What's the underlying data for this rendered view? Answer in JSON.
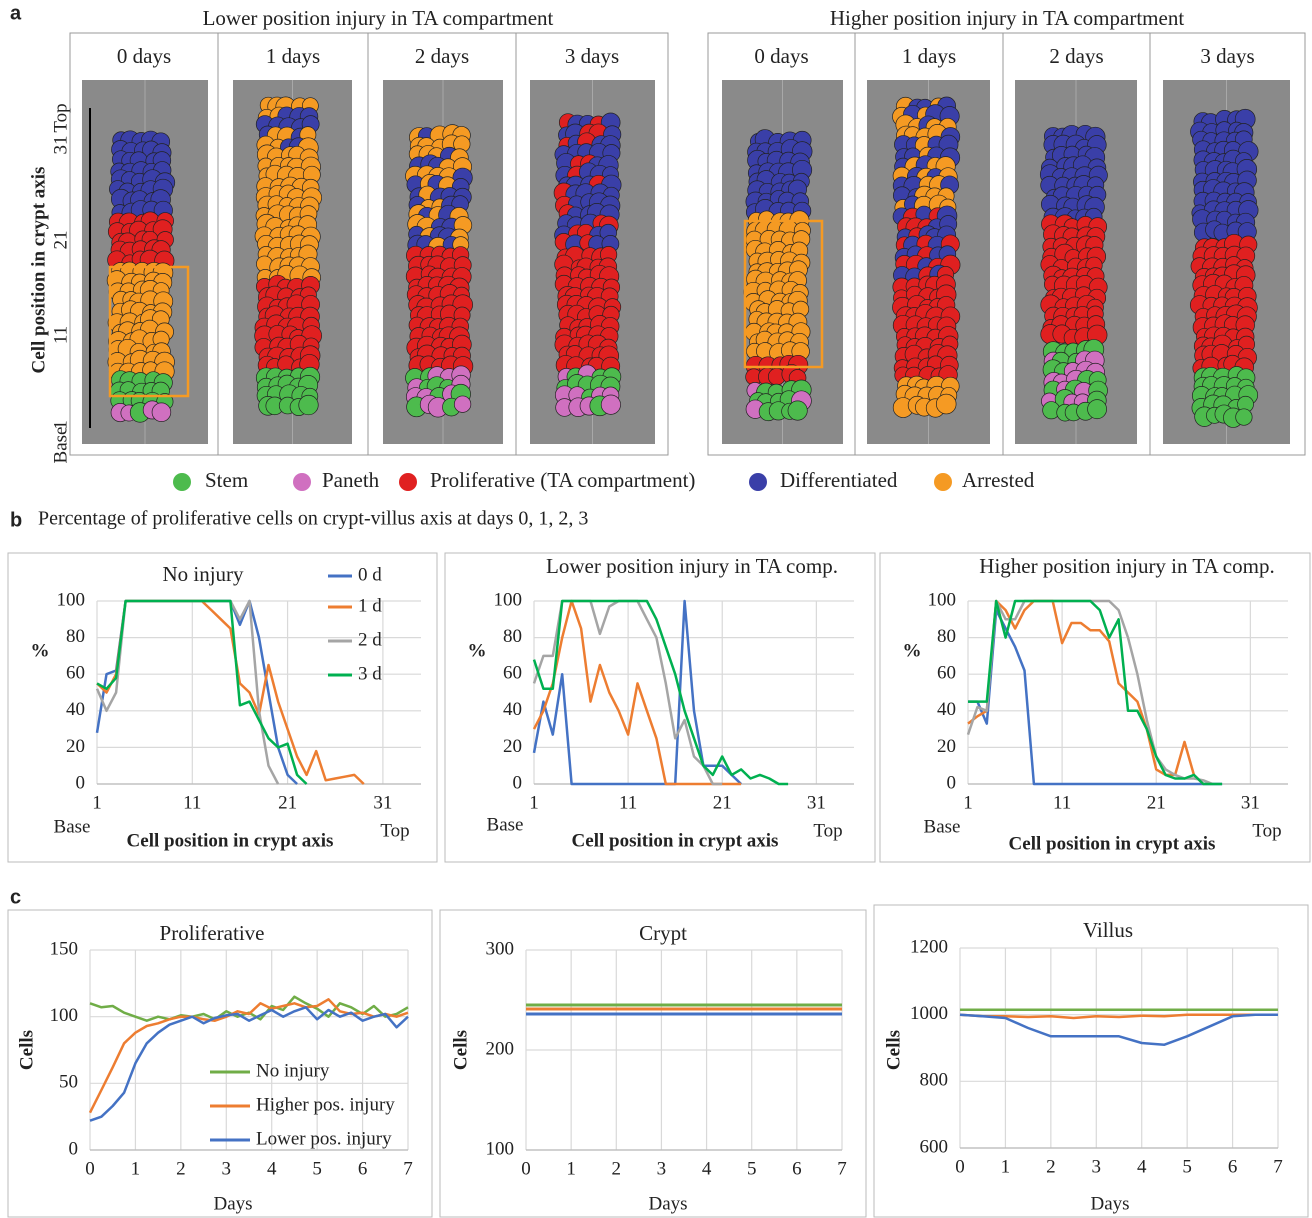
{
  "panel_labels": [
    "a",
    "b",
    "c"
  ],
  "panel_a": {
    "groups": [
      {
        "title": "Lower position injury in TA compartment",
        "days": [
          "0 days",
          "1 days",
          "2 days",
          "3 days"
        ]
      },
      {
        "title": "Higher position injury in TA compartment",
        "days": [
          "0 days",
          "1 days",
          "2 days",
          "3 days"
        ]
      }
    ],
    "axis_label": "Cell position in crypt axis",
    "axis_ticks": [
      "Top",
      "31",
      "21",
      "11",
      "1",
      "Base"
    ],
    "legend": [
      {
        "label": "Stem",
        "color": "#4dbb4d"
      },
      {
        "label": "Paneth",
        "color": "#d070c0"
      },
      {
        "label": "Proliferative (TA compartment)",
        "color": "#e02020"
      },
      {
        "label": "Differentiated",
        "color": "#3a3fa8"
      },
      {
        "label": "Arrested",
        "color": "#f59a23"
      }
    ]
  },
  "panel_b_title": "Percentage of proliferative cells on crypt-villus axis at days 0, 1, 2, 3",
  "chart_data": [
    {
      "type": "line",
      "title": "No injury",
      "xlabel": "Cell position in crypt axis",
      "ylabel": "%",
      "x_end_labels": [
        "Base",
        "Top"
      ],
      "x": [
        1,
        2,
        3,
        4,
        5,
        6,
        7,
        8,
        9,
        10,
        11,
        12,
        13,
        14,
        15,
        16,
        17,
        18,
        19,
        20,
        21,
        22,
        23,
        24,
        25,
        26,
        27,
        28,
        29
      ],
      "xlim": [
        1,
        35
      ],
      "xticks": [
        1,
        11,
        21,
        31
      ],
      "ylim": [
        0,
        100
      ],
      "yticks": [
        0,
        20,
        40,
        60,
        80,
        100
      ],
      "grid": true,
      "series": [
        {
          "name": "0 d",
          "color": "#4472c4",
          "values": [
            28,
            60,
            62,
            100,
            100,
            100,
            100,
            100,
            100,
            100,
            100,
            100,
            100,
            100,
            100,
            87,
            100,
            80,
            50,
            20,
            5,
            0,
            null,
            null,
            null,
            null,
            null,
            null,
            null
          ]
        },
        {
          "name": "1 d",
          "color": "#ed7d31",
          "values": [
            55,
            50,
            60,
            100,
            100,
            100,
            100,
            100,
            100,
            100,
            100,
            100,
            95,
            90,
            85,
            55,
            50,
            38,
            65,
            45,
            30,
            15,
            5,
            18,
            2,
            3,
            4,
            5,
            0
          ]
        },
        {
          "name": "2 d",
          "color": "#a5a5a5",
          "values": [
            52,
            40,
            50,
            100,
            100,
            100,
            100,
            100,
            100,
            100,
            100,
            100,
            100,
            100,
            100,
            90,
            100,
            40,
            10,
            0,
            null,
            null,
            null,
            null,
            null,
            null,
            null,
            null,
            null
          ]
        },
        {
          "name": "3 d",
          "color": "#00b050",
          "values": [
            55,
            52,
            58,
            100,
            100,
            100,
            100,
            100,
            100,
            100,
            100,
            100,
            100,
            100,
            100,
            43,
            45,
            35,
            25,
            20,
            22,
            5,
            0,
            null,
            null,
            null,
            null,
            null,
            null
          ]
        }
      ]
    },
    {
      "type": "line",
      "title": "Lower position injury in TA comp.",
      "xlabel": "Cell position in crypt axis",
      "ylabel": "%",
      "x_end_labels": [
        "Base",
        "Top"
      ],
      "x": [
        1,
        2,
        3,
        4,
        5,
        6,
        7,
        8,
        9,
        10,
        11,
        12,
        13,
        14,
        15,
        16,
        17,
        18,
        19,
        20,
        21,
        22,
        23,
        24,
        25,
        26,
        27,
        28,
        29
      ],
      "xlim": [
        1,
        35
      ],
      "xticks": [
        1,
        11,
        21,
        31
      ],
      "ylim": [
        0,
        100
      ],
      "yticks": [
        0,
        20,
        40,
        60,
        80,
        100
      ],
      "grid": true,
      "series": [
        {
          "color": "#4472c4",
          "values": [
            17,
            45,
            27,
            60,
            0,
            0,
            0,
            0,
            0,
            0,
            0,
            0,
            0,
            0,
            0,
            0,
            100,
            40,
            10,
            10,
            10,
            5,
            0,
            null,
            null,
            null,
            null,
            null,
            null
          ]
        },
        {
          "color": "#ed7d31",
          "values": [
            30,
            40,
            55,
            80,
            100,
            85,
            45,
            65,
            50,
            40,
            27,
            55,
            40,
            25,
            0,
            0,
            0,
            0,
            0,
            0,
            0,
            0,
            0,
            null,
            null,
            null,
            null,
            null,
            null
          ]
        },
        {
          "color": "#a5a5a5",
          "values": [
            55,
            70,
            70,
            100,
            100,
            100,
            100,
            82,
            97,
            100,
            100,
            100,
            90,
            80,
            55,
            25,
            35,
            15,
            10,
            0,
            0,
            null,
            null,
            null,
            null,
            null,
            null,
            null,
            null
          ]
        },
        {
          "color": "#00b050",
          "values": [
            68,
            52,
            52,
            100,
            100,
            100,
            100,
            100,
            100,
            100,
            100,
            100,
            100,
            90,
            75,
            60,
            40,
            25,
            10,
            5,
            15,
            5,
            8,
            3,
            5,
            3,
            0,
            0,
            null
          ]
        }
      ]
    },
    {
      "type": "line",
      "title": "Higher position injury in TA comp.",
      "xlabel": "Cell position in crypt axis",
      "ylabel": "%",
      "x_end_labels": [
        "Base",
        "Top"
      ],
      "x": [
        1,
        2,
        3,
        4,
        5,
        6,
        7,
        8,
        9,
        10,
        11,
        12,
        13,
        14,
        15,
        16,
        17,
        18,
        19,
        20,
        21,
        22,
        23,
        24,
        25,
        26,
        27,
        28,
        29
      ],
      "xlim": [
        1,
        35
      ],
      "xticks": [
        1,
        11,
        21,
        31
      ],
      "ylim": [
        0,
        100
      ],
      "yticks": [
        0,
        20,
        40,
        60,
        80,
        100
      ],
      "grid": true,
      "series": [
        {
          "color": "#4472c4",
          "values": [
            45,
            45,
            33,
            95,
            85,
            75,
            62,
            0,
            0,
            0,
            0,
            0,
            0,
            0,
            0,
            0,
            0,
            0,
            0,
            0,
            0,
            0,
            0,
            0,
            0,
            0,
            0,
            0,
            null
          ]
        },
        {
          "color": "#ed7d31",
          "values": [
            33,
            37,
            40,
            100,
            95,
            85,
            95,
            100,
            100,
            100,
            77,
            88,
            88,
            84,
            84,
            78,
            55,
            50,
            45,
            30,
            8,
            5,
            5,
            23,
            5,
            0,
            null,
            null,
            null
          ]
        },
        {
          "color": "#a5a5a5",
          "values": [
            27,
            42,
            40,
            100,
            90,
            90,
            100,
            100,
            100,
            100,
            100,
            100,
            100,
            100,
            100,
            100,
            95,
            80,
            60,
            35,
            15,
            8,
            5,
            3,
            3,
            2,
            0,
            null,
            null
          ]
        },
        {
          "color": "#00b050",
          "values": [
            45,
            45,
            45,
            100,
            80,
            100,
            100,
            100,
            100,
            100,
            100,
            100,
            100,
            100,
            95,
            80,
            90,
            40,
            40,
            30,
            15,
            5,
            3,
            3,
            5,
            0,
            0,
            0,
            null
          ]
        }
      ]
    },
    {
      "type": "line",
      "title": "Proliferative",
      "xlabel": "Days",
      "ylabel": "Cells",
      "x": [
        0,
        0.25,
        0.5,
        0.75,
        1,
        1.25,
        1.5,
        1.75,
        2,
        2.25,
        2.5,
        2.75,
        3,
        3.25,
        3.5,
        3.75,
        4,
        4.25,
        4.5,
        4.75,
        5,
        5.25,
        5.5,
        5.75,
        6,
        6.25,
        6.5,
        6.75,
        7
      ],
      "xlim": [
        0,
        7
      ],
      "xticks": [
        0,
        1,
        2,
        3,
        4,
        5,
        6,
        7
      ],
      "ylim": [
        0,
        150
      ],
      "yticks": [
        0,
        50,
        100,
        150
      ],
      "grid": true,
      "series": [
        {
          "name": "No injury",
          "color": "#70ad47",
          "values": [
            110,
            107,
            108,
            103,
            100,
            97,
            100,
            98,
            101,
            100,
            102,
            98,
            104,
            100,
            103,
            98,
            108,
            105,
            115,
            110,
            106,
            100,
            110,
            107,
            102,
            108,
            100,
            102,
            107
          ]
        },
        {
          "name": "Higher pos. injury",
          "color": "#ed7d31",
          "values": [
            28,
            45,
            62,
            80,
            88,
            93,
            95,
            98,
            100,
            100,
            98,
            97,
            100,
            104,
            102,
            110,
            106,
            108,
            110,
            107,
            108,
            113,
            104,
            102,
            103,
            100,
            102,
            100,
            103
          ]
        },
        {
          "name": "Lower pos. injury",
          "color": "#4472c4",
          "values": [
            22,
            25,
            33,
            43,
            65,
            80,
            88,
            94,
            97,
            100,
            95,
            99,
            101,
            102,
            97,
            101,
            105,
            100,
            104,
            107,
            98,
            105,
            100,
            103,
            97,
            100,
            102,
            92,
            100
          ]
        }
      ]
    },
    {
      "type": "line",
      "title": "Crypt",
      "xlabel": "Days",
      "ylabel": "Cells",
      "x": [
        0,
        7
      ],
      "xlim": [
        0,
        7
      ],
      "xticks": [
        0,
        1,
        2,
        3,
        4,
        5,
        6,
        7
      ],
      "ylim": [
        100,
        300
      ],
      "yticks": [
        100,
        200,
        300
      ],
      "grid": true,
      "series": [
        {
          "color": "#70ad47",
          "values": [
            245,
            245
          ]
        },
        {
          "color": "#ed7d31",
          "values": [
            241,
            241
          ]
        },
        {
          "color": "#4472c4",
          "values": [
            236,
            236
          ]
        }
      ]
    },
    {
      "type": "line",
      "title": "Villus",
      "xlabel": "Days",
      "ylabel": "Cells",
      "x": [
        0,
        0.5,
        1,
        1.5,
        2,
        2.5,
        3,
        3.5,
        4,
        4.5,
        5,
        5.5,
        6,
        6.5,
        7
      ],
      "xlim": [
        0,
        7
      ],
      "xticks": [
        0,
        1,
        2,
        3,
        4,
        5,
        6,
        7
      ],
      "ylim": [
        600,
        1200
      ],
      "yticks": [
        600,
        800,
        1000,
        1200
      ],
      "grid": true,
      "series": [
        {
          "color": "#70ad47",
          "values": [
            1015,
            1015,
            1015,
            1015,
            1015,
            1015,
            1015,
            1015,
            1015,
            1015,
            1015,
            1015,
            1015,
            1015,
            1015
          ]
        },
        {
          "color": "#ed7d31",
          "values": [
            1000,
            995,
            995,
            993,
            995,
            990,
            995,
            993,
            997,
            995,
            1000,
            1000,
            1000,
            1000,
            1000
          ]
        },
        {
          "color": "#4472c4",
          "values": [
            1000,
            995,
            990,
            960,
            935,
            935,
            935,
            935,
            915,
            910,
            935,
            965,
            995,
            1000,
            1000
          ]
        }
      ]
    }
  ]
}
